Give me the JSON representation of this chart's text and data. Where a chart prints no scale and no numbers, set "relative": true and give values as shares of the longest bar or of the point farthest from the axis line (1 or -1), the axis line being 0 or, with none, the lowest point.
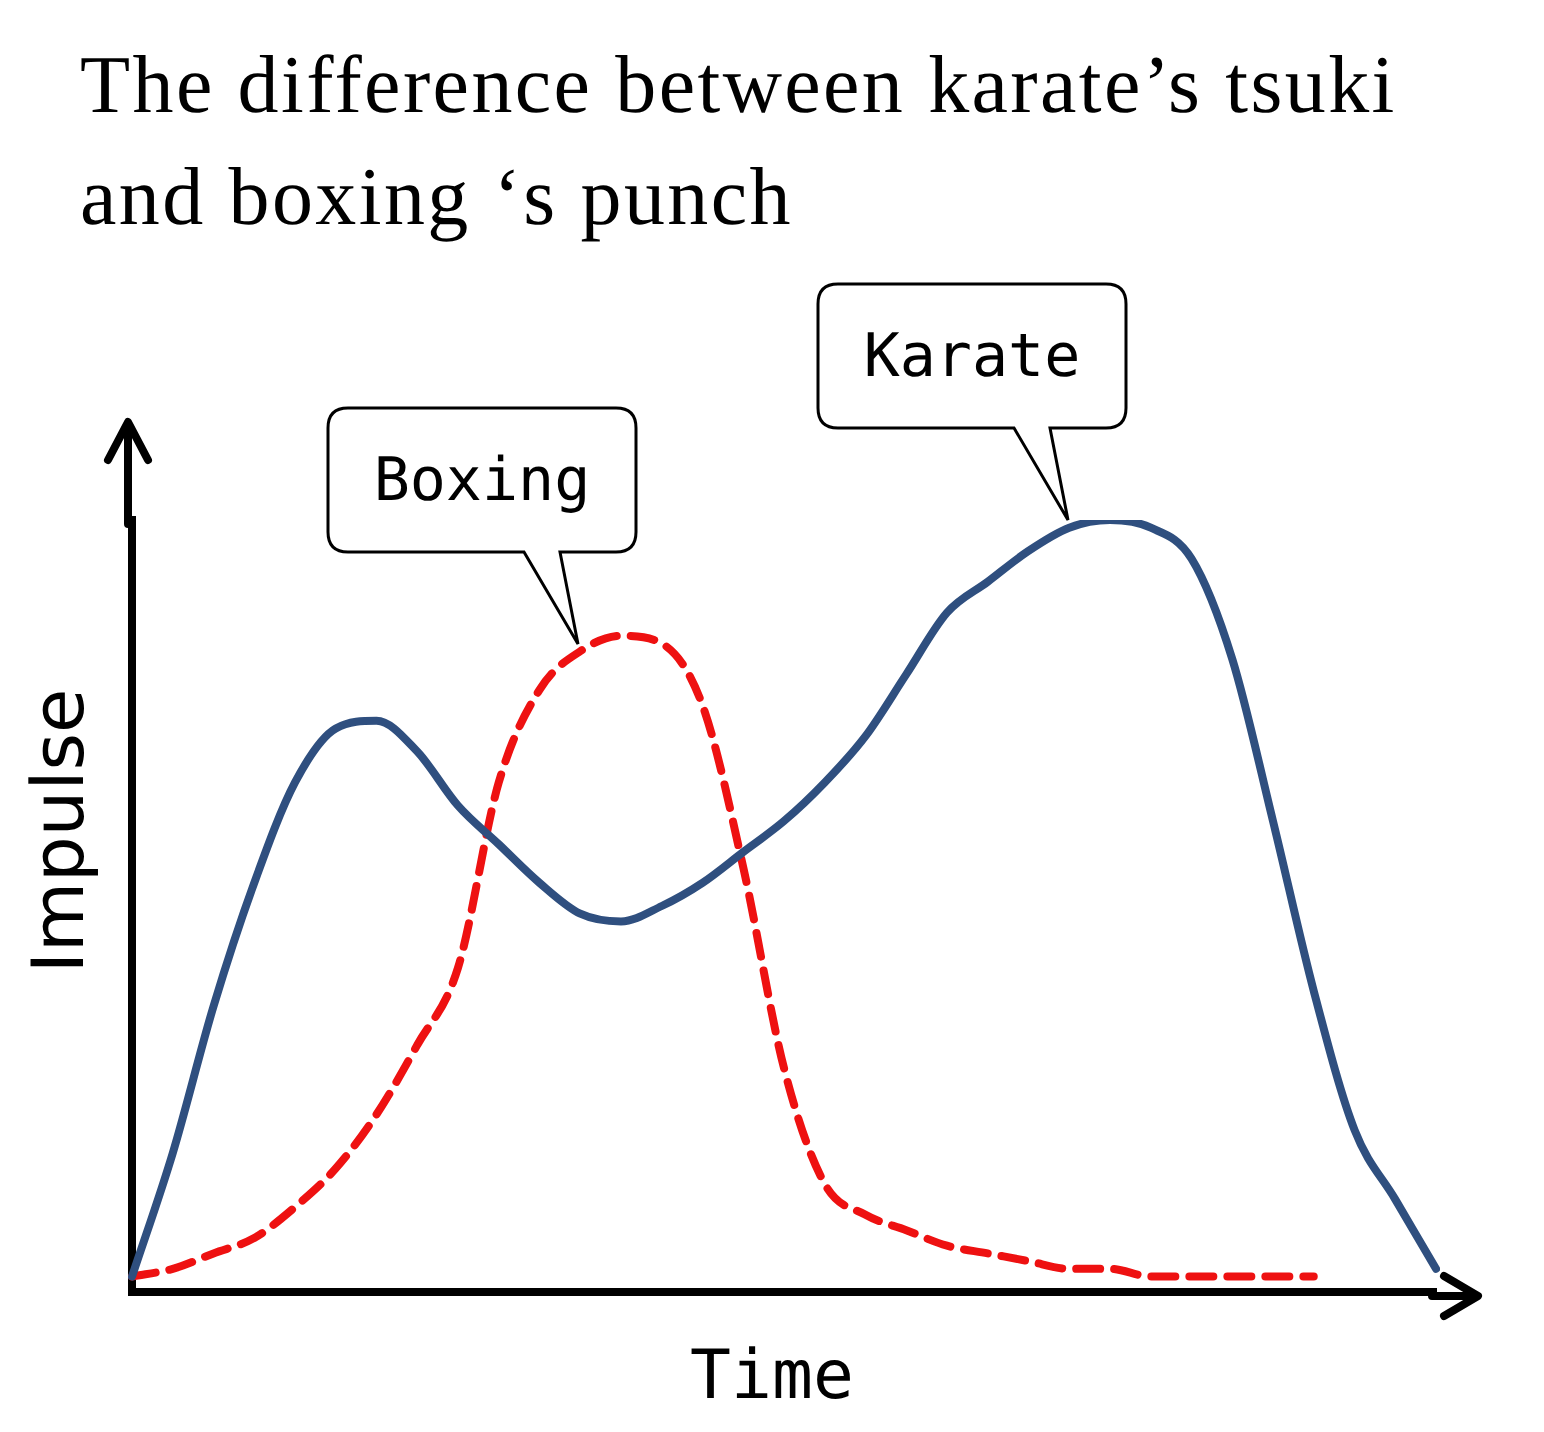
{
  "chart_data": {
    "type": "line",
    "title": "The difference between karate’s tsuki and boxing ‘s punch",
    "xlabel": "Time",
    "ylabel": "Impulse",
    "relative": true,
    "legend": false,
    "marker": "none",
    "categories": [
      null,
      null,
      null,
      null,
      null,
      null,
      null,
      null,
      null,
      null,
      null,
      null,
      null,
      null,
      null,
      null,
      null,
      null,
      null,
      null,
      null,
      null,
      null,
      null,
      null,
      null,
      null,
      null,
      null,
      null,
      null,
      null,
      null
    ],
    "series": [
      {
        "name": "Karate",
        "color": "#2f4f7f",
        "line_style": "solid",
        "values": [
          0.02,
          0.18,
          0.37,
          0.53,
          0.66,
          0.73,
          0.74,
          0.7,
          0.63,
          0.58,
          0.53,
          0.49,
          0.48,
          0.5,
          0.53,
          0.57,
          0.61,
          0.66,
          0.72,
          0.8,
          0.88,
          0.92,
          0.96,
          0.99,
          1,
          0.99,
          0.95,
          0.82,
          0.61,
          0.39,
          0.21,
          0.12,
          0.03
        ]
      },
      {
        "name": "Boxing",
        "color": "#ee1111",
        "line_style": "dashed",
        "values": [
          0.02,
          0.03,
          0.05,
          0.07,
          0.11,
          0.16,
          0.23,
          0.32,
          0.42,
          0.66,
          0.78,
          0.83,
          0.85,
          0.84,
          0.76,
          0.55,
          0.29,
          0.14,
          0.1,
          0.08,
          0.06,
          0.05,
          0.04,
          0.03,
          0.03,
          0.02,
          0.02,
          0.02,
          0.02,
          0.02,
          null,
          null,
          null
        ]
      }
    ]
  }
}
